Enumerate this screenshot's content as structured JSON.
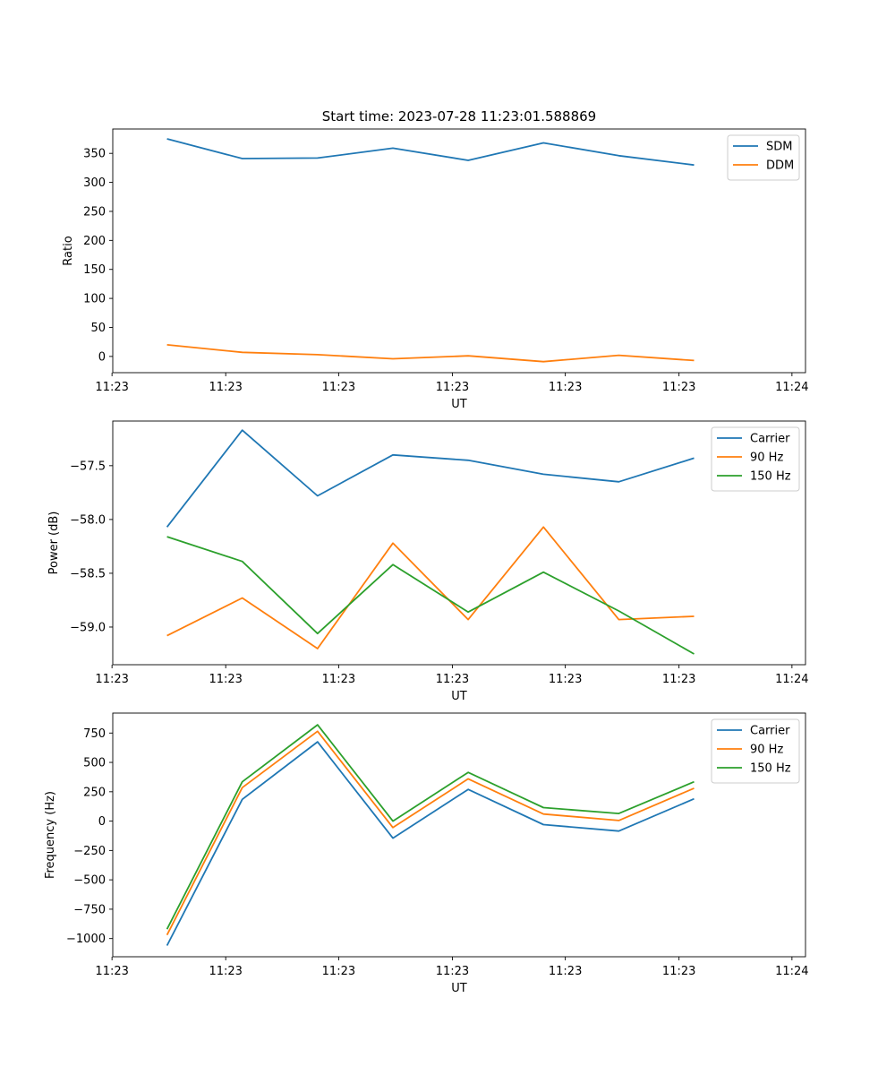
{
  "chart_data": [
    {
      "type": "line",
      "title": "Start time: 2023-07-28 11:23:01.588869",
      "xlabel": "UT",
      "ylabel": "Ratio",
      "x_index": [
        0,
        1,
        2,
        3,
        4,
        5,
        6,
        7
      ],
      "xlim": [
        -0.72,
        8.48
      ],
      "x_ticks": [
        -0.73,
        0.78,
        2.28,
        3.79,
        5.29,
        6.8,
        8.3
      ],
      "x_tick_labels": [
        "11:23",
        "11:23",
        "11:23",
        "11:23",
        "11:23",
        "11:23",
        "11:24"
      ],
      "ylim": [
        -28,
        392
      ],
      "y_ticks": [
        0,
        50,
        100,
        150,
        200,
        250,
        300,
        350
      ],
      "y_tick_labels": [
        "0",
        "50",
        "100",
        "150",
        "200",
        "250",
        "300",
        "350"
      ],
      "legend_position": "upper-right",
      "series": [
        {
          "name": "SDM",
          "color": "#1f77b4",
          "values": [
            375,
            341,
            342,
            359,
            338,
            368,
            346,
            330
          ]
        },
        {
          "name": "DDM",
          "color": "#ff7f0e",
          "values": [
            20,
            7,
            3,
            -4,
            1,
            -9,
            2,
            -7
          ]
        }
      ]
    },
    {
      "type": "line",
      "title": "",
      "xlabel": "UT",
      "ylabel": "Power (dB)",
      "x_index": [
        0,
        1,
        2,
        3,
        4,
        5,
        6,
        7
      ],
      "xlim": [
        -0.72,
        8.48
      ],
      "x_ticks": [
        -0.73,
        0.78,
        2.28,
        3.79,
        5.29,
        6.8,
        8.3
      ],
      "x_tick_labels": [
        "11:23",
        "11:23",
        "11:23",
        "11:23",
        "11:23",
        "11:23",
        "11:24"
      ],
      "ylim": [
        -59.35,
        -57.085
      ],
      "y_ticks": [
        -59.0,
        -58.5,
        -58.0,
        -57.5
      ],
      "y_tick_labels": [
        "−59.0",
        "−58.5",
        "−58.0",
        "−57.5"
      ],
      "legend_position": "upper-right",
      "series": [
        {
          "name": "Carrier",
          "color": "#1f77b4",
          "values": [
            -58.07,
            -57.17,
            -57.78,
            -57.4,
            -57.45,
            -57.58,
            -57.65,
            -57.43
          ]
        },
        {
          "name": "90 Hz",
          "color": "#ff7f0e",
          "values": [
            -59.08,
            -58.73,
            -59.2,
            -58.22,
            -58.93,
            -58.07,
            -58.93,
            -58.9
          ]
        },
        {
          "name": "150 Hz",
          "color": "#2ca02c",
          "values": [
            -58.16,
            -58.39,
            -59.06,
            -58.42,
            -58.86,
            -58.49,
            -58.85,
            -59.25
          ]
        }
      ]
    },
    {
      "type": "line",
      "title": "",
      "xlabel": "UT",
      "ylabel": "Frequency (Hz)",
      "x_index": [
        0,
        1,
        2,
        3,
        4,
        5,
        6,
        7
      ],
      "xlim": [
        -0.72,
        8.48
      ],
      "x_ticks": [
        -0.73,
        0.78,
        2.28,
        3.79,
        5.29,
        6.8,
        8.3
      ],
      "x_tick_labels": [
        "11:23",
        "11:23",
        "11:23",
        "11:23",
        "11:23",
        "11:23",
        "11:24"
      ],
      "ylim": [
        -1155,
        920
      ],
      "y_ticks": [
        -1000,
        -750,
        -500,
        -250,
        0,
        250,
        500,
        750
      ],
      "y_tick_labels": [
        "−1000",
        "−750",
        "−500",
        "−250",
        "0",
        "250",
        "500",
        "750"
      ],
      "legend_position": "upper-right",
      "series": [
        {
          "name": "Carrier",
          "color": "#1f77b4",
          "values": [
            -1060,
            185,
            675,
            -145,
            270,
            -30,
            -85,
            190
          ]
        },
        {
          "name": "90 Hz",
          "color": "#ff7f0e",
          "values": [
            -970,
            285,
            765,
            -55,
            360,
            60,
            5,
            280
          ]
        },
        {
          "name": "150 Hz",
          "color": "#2ca02c",
          "values": [
            -920,
            335,
            820,
            0,
            415,
            115,
            65,
            335
          ]
        }
      ]
    }
  ]
}
